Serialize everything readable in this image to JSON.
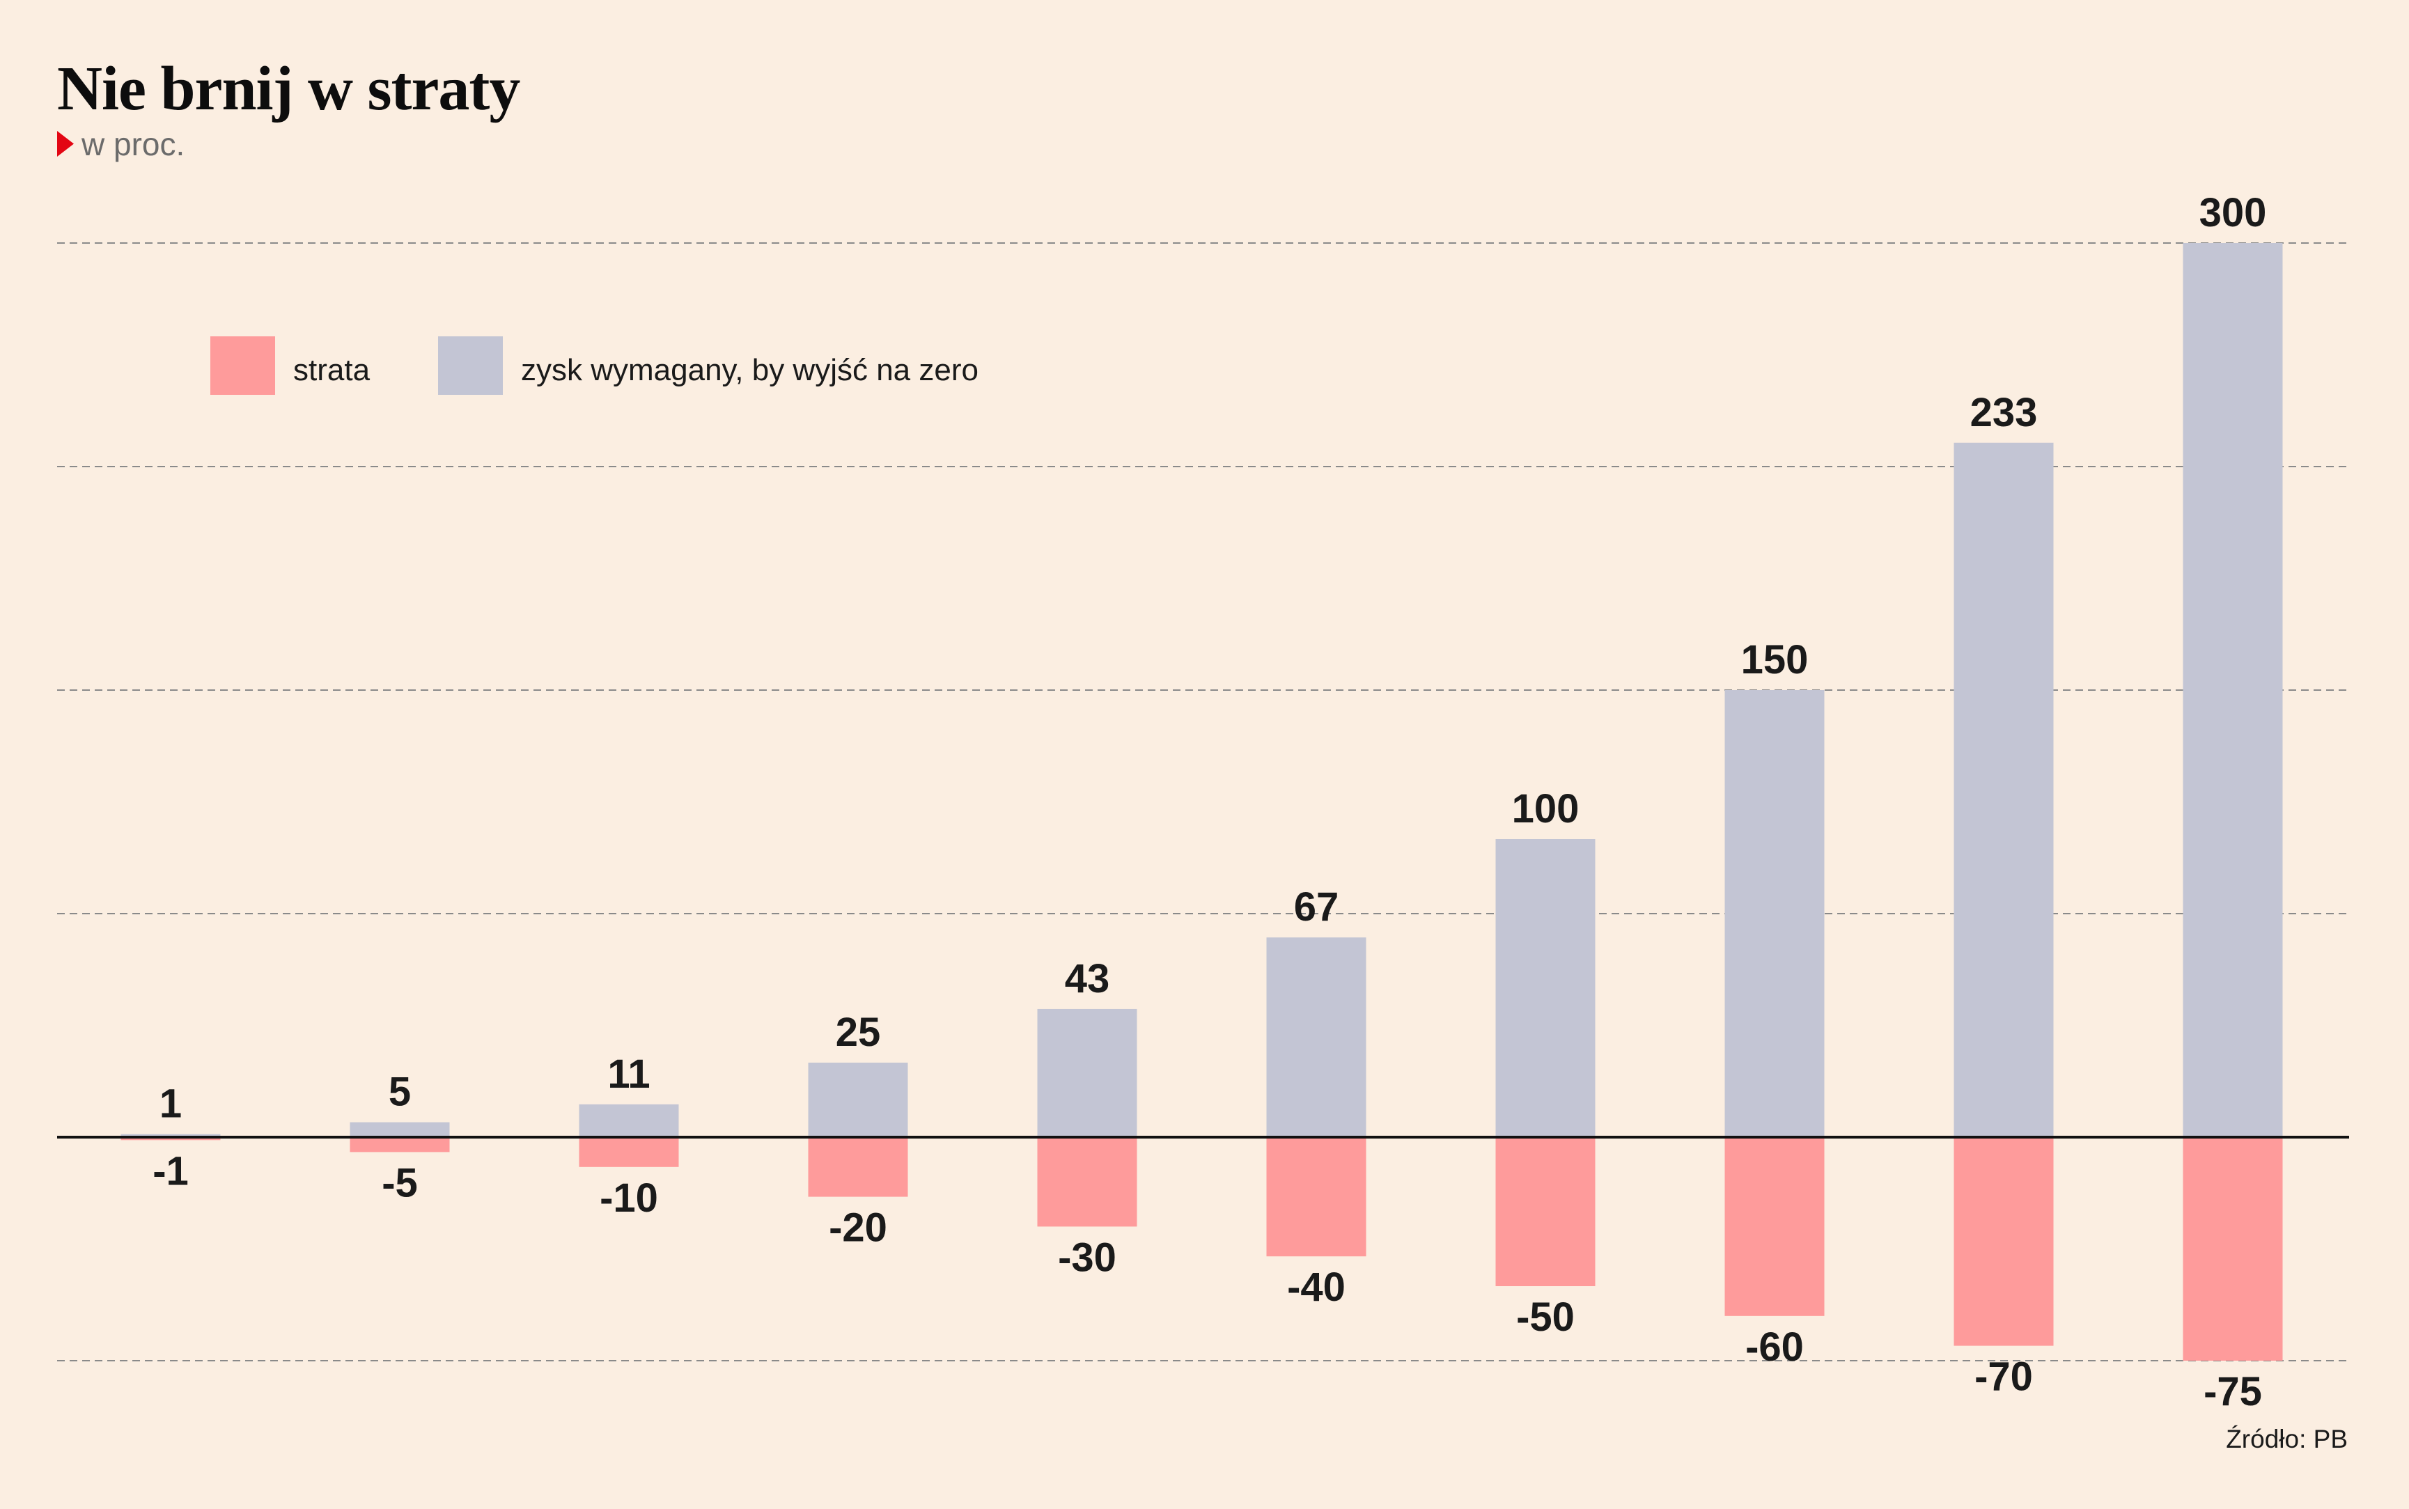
{
  "title": "Nie brnij w straty",
  "subtitle": "w proc.",
  "source": "Źródło: PB",
  "colors": {
    "background": "#fbeee1",
    "loss": "#fe9b9b",
    "gain": "#c3c5d4",
    "accent": "#e30613",
    "text": "#1a1a1a"
  },
  "chart_data": {
    "type": "bar",
    "series": [
      {
        "name": "strata",
        "values": [
          -1,
          -5,
          -10,
          -20,
          -30,
          -40,
          -50,
          -60,
          -70,
          -75
        ]
      },
      {
        "name": "zysk wymagany, by wyjść na zero",
        "values": [
          1,
          5,
          11,
          25,
          43,
          67,
          100,
          150,
          233,
          300
        ]
      }
    ],
    "ylim": [
      -75,
      300
    ],
    "grid": true,
    "grid_step": 75,
    "legend": "top-left"
  }
}
